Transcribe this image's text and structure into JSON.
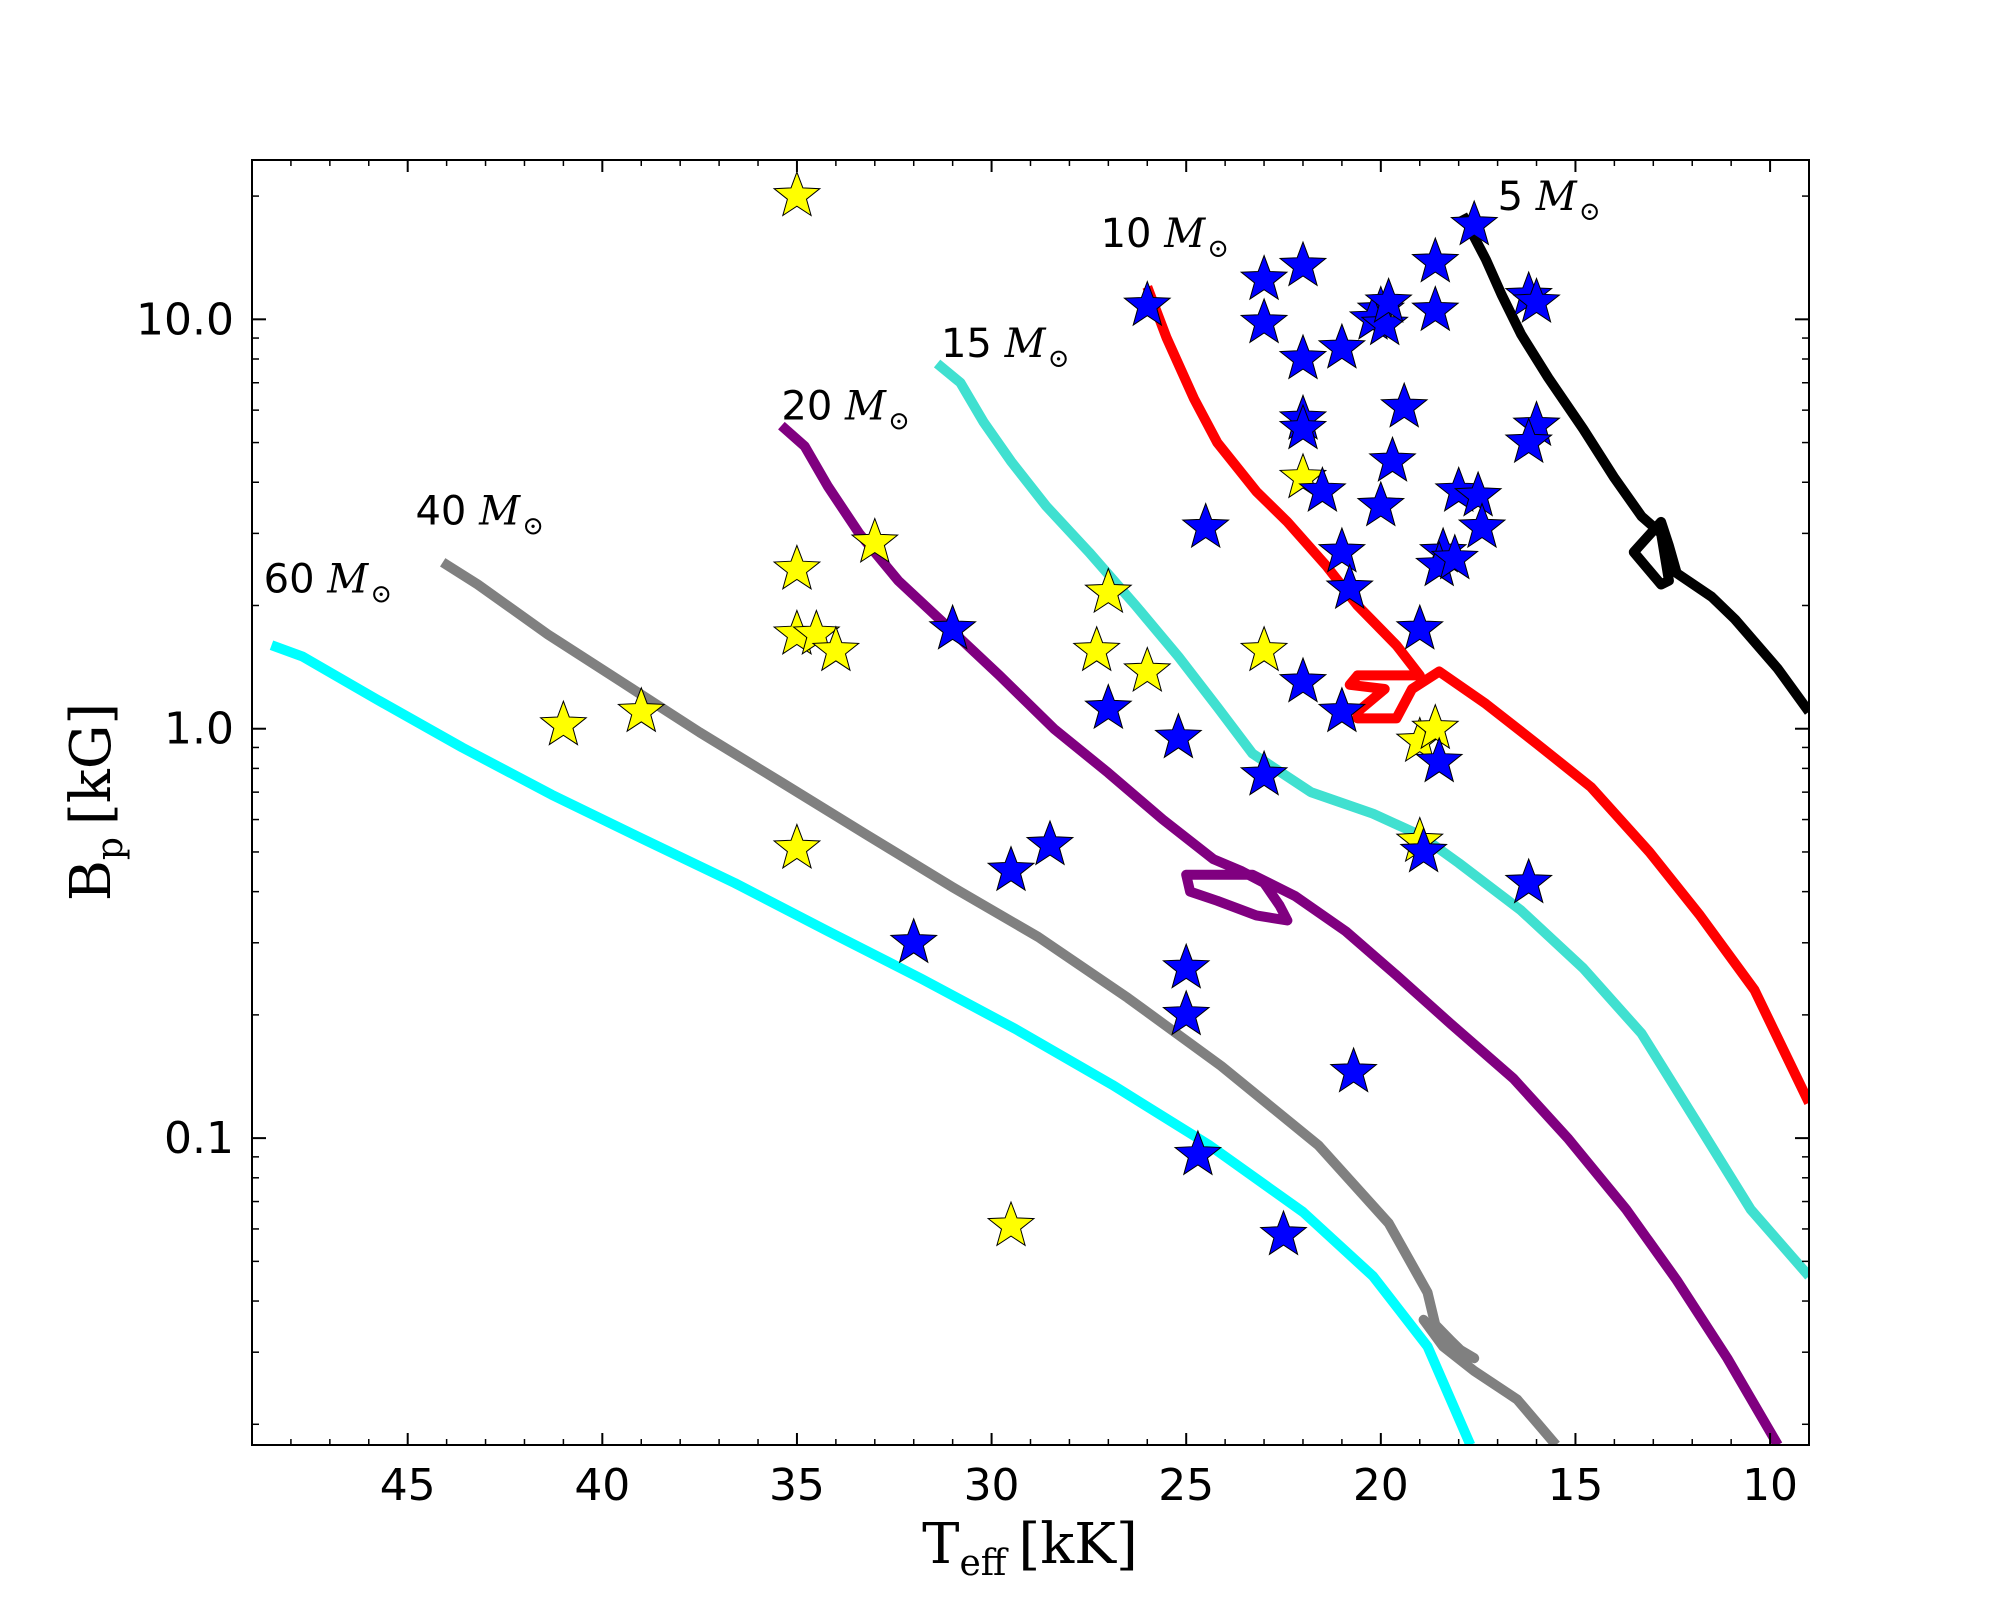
{
  "chart_data": {
    "type": "scatter",
    "title": "",
    "xlabel": {
      "main": "T",
      "sub": "eff",
      "unit": "[kK]"
    },
    "ylabel": {
      "main": "B",
      "sub": "p",
      "unit": "[kG]"
    },
    "xlim": [
      49,
      9
    ],
    "ylim": [
      0.0178,
      24.5
    ],
    "yscale": "log",
    "grid": false,
    "x_ticks": [
      {
        "value": 45,
        "label": "45"
      },
      {
        "value": 40,
        "label": "40"
      },
      {
        "value": 35,
        "label": "35"
      },
      {
        "value": 30,
        "label": "30"
      },
      {
        "value": 25,
        "label": "25"
      },
      {
        "value": 20,
        "label": "20"
      },
      {
        "value": 15,
        "label": "15"
      },
      {
        "value": 10,
        "label": "10"
      }
    ],
    "y_ticks": [
      {
        "value": 0.1,
        "label": "0.1"
      },
      {
        "value": 1.0,
        "label": "1.0"
      },
      {
        "value": 10.0,
        "label": "10.0"
      }
    ],
    "tracks": [
      {
        "name": "5",
        "label_mass": "5",
        "label_unit": "M",
        "label_sym": "⊙",
        "label_at": [
          17.0,
          18.5
        ],
        "color": "#000000",
        "points": [
          [
            17.9,
            18
          ],
          [
            17.3,
            14
          ],
          [
            16.9,
            11.5
          ],
          [
            16.4,
            9.2
          ],
          [
            15.7,
            7.2
          ],
          [
            14.8,
            5.4
          ],
          [
            14.0,
            4.1
          ],
          [
            13.3,
            3.3
          ],
          [
            12.8,
            3.0
          ],
          [
            12.6,
            2.3
          ],
          [
            12.8,
            2.25
          ],
          [
            13.5,
            2.7
          ],
          [
            12.8,
            3.2
          ],
          [
            12.6,
            2.8
          ],
          [
            12.4,
            2.4
          ],
          [
            11.5,
            2.1
          ],
          [
            10.9,
            1.85
          ],
          [
            9.8,
            1.4
          ],
          [
            9.0,
            1.1
          ]
        ]
      },
      {
        "name": "10",
        "label_mass": "10",
        "label_unit": "M",
        "label_sym": "⊙",
        "label_at": [
          27.2,
          15.0
        ],
        "color": "#ff0000",
        "points": [
          [
            26.0,
            12.0
          ],
          [
            25.5,
            9.0
          ],
          [
            24.8,
            6.4
          ],
          [
            24.2,
            5.0
          ],
          [
            23.2,
            3.8
          ],
          [
            22.4,
            3.2
          ],
          [
            21.4,
            2.5
          ],
          [
            20.6,
            2.0
          ],
          [
            19.6,
            1.6
          ],
          [
            19.0,
            1.35
          ],
          [
            20.6,
            1.35
          ],
          [
            20.8,
            1.28
          ],
          [
            19.9,
            1.25
          ],
          [
            20.6,
            1.1
          ],
          [
            20.6,
            1.06
          ],
          [
            19.6,
            1.06
          ],
          [
            19.2,
            1.25
          ],
          [
            18.5,
            1.38
          ],
          [
            17.3,
            1.15
          ],
          [
            16.0,
            0.92
          ],
          [
            14.6,
            0.72
          ],
          [
            13.1,
            0.5
          ],
          [
            11.8,
            0.35
          ],
          [
            10.4,
            0.23
          ],
          [
            9.0,
            0.122
          ]
        ]
      },
      {
        "name": "15",
        "label_mass": "15",
        "label_unit": "M",
        "label_sym": "⊙",
        "label_at": [
          31.3,
          8.1
        ],
        "color": "#40e0d0",
        "points": [
          [
            31.4,
            7.8
          ],
          [
            30.8,
            7.0
          ],
          [
            30.2,
            5.6
          ],
          [
            29.5,
            4.5
          ],
          [
            28.6,
            3.5
          ],
          [
            27.5,
            2.7
          ],
          [
            26.3,
            2.0
          ],
          [
            25.2,
            1.5
          ],
          [
            24.2,
            1.13
          ],
          [
            23.3,
            0.87
          ],
          [
            21.8,
            0.7
          ],
          [
            20.2,
            0.62
          ],
          [
            19.0,
            0.55
          ],
          [
            18.0,
            0.47
          ],
          [
            16.4,
            0.36
          ],
          [
            14.8,
            0.26
          ],
          [
            13.3,
            0.18
          ],
          [
            11.9,
            0.11
          ],
          [
            10.5,
            0.067
          ],
          [
            9.0,
            0.046
          ]
        ]
      },
      {
        "name": "20",
        "label_mass": "20",
        "label_unit": "M",
        "label_sym": "⊙",
        "label_at": [
          35.4,
          5.7
        ],
        "color": "#800080",
        "points": [
          [
            35.4,
            5.5
          ],
          [
            34.8,
            4.9
          ],
          [
            34.2,
            3.9
          ],
          [
            33.4,
            3.0
          ],
          [
            32.4,
            2.3
          ],
          [
            31.2,
            1.8
          ],
          [
            29.8,
            1.35
          ],
          [
            28.4,
            1.0
          ],
          [
            27.0,
            0.78
          ],
          [
            25.6,
            0.6
          ],
          [
            24.3,
            0.48
          ],
          [
            23.6,
            0.45
          ],
          [
            23.0,
            0.42
          ],
          [
            22.6,
            0.37
          ],
          [
            22.4,
            0.34
          ],
          [
            23.2,
            0.35
          ],
          [
            24.2,
            0.38
          ],
          [
            24.9,
            0.4
          ],
          [
            25.0,
            0.44
          ],
          [
            23.3,
            0.44
          ],
          [
            22.2,
            0.39
          ],
          [
            20.9,
            0.32
          ],
          [
            19.6,
            0.25
          ],
          [
            18.2,
            0.19
          ],
          [
            16.6,
            0.14
          ],
          [
            15.2,
            0.1
          ],
          [
            13.7,
            0.067
          ],
          [
            12.4,
            0.045
          ],
          [
            11.1,
            0.029
          ],
          [
            9.8,
            0.0178
          ]
        ]
      },
      {
        "name": "40",
        "label_mass": "40",
        "label_unit": "M",
        "label_sym": "⊙",
        "label_at": [
          44.8,
          3.15
        ],
        "color": "#808080",
        "points": [
          [
            44.1,
            2.55
          ],
          [
            43.2,
            2.25
          ],
          [
            41.4,
            1.7
          ],
          [
            39.5,
            1.3
          ],
          [
            37.5,
            0.98
          ],
          [
            35.4,
            0.74
          ],
          [
            33.2,
            0.55
          ],
          [
            31.0,
            0.41
          ],
          [
            28.8,
            0.31
          ],
          [
            26.5,
            0.22
          ],
          [
            24.1,
            0.15
          ],
          [
            21.6,
            0.096
          ],
          [
            19.8,
            0.062
          ],
          [
            18.8,
            0.042
          ],
          [
            18.6,
            0.035
          ],
          [
            18.2,
            0.032
          ],
          [
            17.9,
            0.03
          ],
          [
            17.6,
            0.029
          ],
          [
            18.6,
            0.033
          ],
          [
            18.9,
            0.036
          ],
          [
            18.4,
            0.031
          ],
          [
            17.6,
            0.027
          ],
          [
            16.5,
            0.023
          ],
          [
            15.5,
            0.0178
          ]
        ]
      },
      {
        "name": "60",
        "label_mass": "60",
        "label_unit": "M",
        "label_sym": "⊙",
        "label_at": [
          48.7,
          2.15
        ],
        "color": "#00ffff",
        "points": [
          [
            48.5,
            1.6
          ],
          [
            47.7,
            1.5
          ],
          [
            45.8,
            1.18
          ],
          [
            43.6,
            0.9
          ],
          [
            41.3,
            0.69
          ],
          [
            39.0,
            0.54
          ],
          [
            36.6,
            0.42
          ],
          [
            34.2,
            0.32
          ],
          [
            31.8,
            0.245
          ],
          [
            29.4,
            0.185
          ],
          [
            26.9,
            0.135
          ],
          [
            24.4,
            0.096
          ],
          [
            22.0,
            0.066
          ],
          [
            20.2,
            0.046
          ],
          [
            18.8,
            0.031
          ],
          [
            17.7,
            0.0178
          ]
        ]
      }
    ],
    "series": [
      {
        "name": "yellow-stars",
        "color": "#ffff00",
        "points": [
          [
            35.0,
            20.0
          ],
          [
            33.0,
            2.85
          ],
          [
            35.0,
            2.45
          ],
          [
            35.0,
            1.7
          ],
          [
            34.5,
            1.7
          ],
          [
            34.0,
            1.55
          ],
          [
            41.0,
            1.02
          ],
          [
            39.0,
            1.1
          ],
          [
            35.0,
            0.51
          ],
          [
            27.0,
            2.15
          ],
          [
            27.3,
            1.55
          ],
          [
            26.0,
            1.38
          ],
          [
            22.0,
            4.1
          ],
          [
            23.0,
            1.55
          ],
          [
            19.0,
            0.93
          ],
          [
            18.6,
            1.0
          ],
          [
            19.0,
            0.53
          ],
          [
            29.5,
            0.061
          ]
        ]
      },
      {
        "name": "blue-stars",
        "color": "#0000ff",
        "points": [
          [
            26.0,
            10.8
          ],
          [
            23.0,
            12.5
          ],
          [
            22.0,
            13.5
          ],
          [
            23.0,
            9.8
          ],
          [
            22.0,
            8.0
          ],
          [
            21.0,
            8.5
          ],
          [
            22.0,
            5.7
          ],
          [
            22.0,
            5.4
          ],
          [
            21.5,
            3.8
          ],
          [
            20.0,
            10.5
          ],
          [
            20.2,
            10.0
          ],
          [
            19.9,
            9.7
          ],
          [
            19.8,
            11.0
          ],
          [
            18.6,
            13.8
          ],
          [
            18.6,
            10.5
          ],
          [
            17.6,
            17.0
          ],
          [
            16.2,
            11.4
          ],
          [
            16.0,
            11.0
          ],
          [
            16.0,
            5.5
          ],
          [
            16.2,
            5.0
          ],
          [
            19.4,
            6.1
          ],
          [
            19.7,
            4.5
          ],
          [
            20.0,
            3.5
          ],
          [
            21.0,
            2.7
          ],
          [
            20.8,
            2.2
          ],
          [
            19.0,
            1.75
          ],
          [
            18.0,
            3.8
          ],
          [
            17.5,
            3.7
          ],
          [
            17.4,
            3.1
          ],
          [
            18.4,
            2.7
          ],
          [
            18.5,
            2.5
          ],
          [
            18.1,
            2.6
          ],
          [
            24.5,
            3.1
          ],
          [
            31.0,
            1.75
          ],
          [
            22.0,
            1.3
          ],
          [
            21.0,
            1.1
          ],
          [
            27.0,
            1.12
          ],
          [
            25.2,
            0.95
          ],
          [
            23.0,
            0.77
          ],
          [
            18.5,
            0.83
          ],
          [
            18.9,
            0.5
          ],
          [
            16.2,
            0.42
          ],
          [
            29.5,
            0.45
          ],
          [
            28.5,
            0.52
          ],
          [
            32.0,
            0.3
          ],
          [
            25.0,
            0.26
          ],
          [
            25.0,
            0.2
          ],
          [
            20.7,
            0.145
          ],
          [
            24.7,
            0.091
          ],
          [
            22.5,
            0.058
          ]
        ]
      }
    ]
  }
}
